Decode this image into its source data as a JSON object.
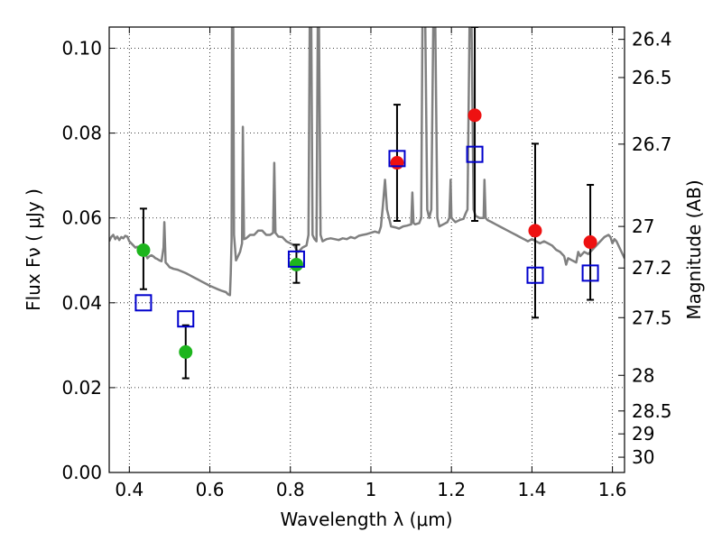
{
  "chart_data": {
    "type": "scatter",
    "xlabel": "Wavelength  λ (μm)",
    "ylabel": "Flux  Fν  ( μJy )",
    "y2label": "Magnitude (AB)",
    "xlim": [
      0.35,
      1.63
    ],
    "ylim": [
      0.0,
      0.105
    ],
    "grid": true,
    "x_ticks": [
      0.4,
      0.6,
      0.8,
      1.0,
      1.2,
      1.4,
      1.6
    ],
    "x_tick_labels": [
      "0.4",
      "0.6",
      "0.8",
      "1",
      "1.2",
      "1.4",
      "1.6"
    ],
    "y_ticks": [
      0.0,
      0.02,
      0.04,
      0.06,
      0.08,
      0.1
    ],
    "y_tick_labels": [
      "0.00",
      "0.02",
      "0.04",
      "0.06",
      "0.08",
      "0.10"
    ],
    "y2_ticks": [
      {
        "label": "26.4",
        "flux": 0.1021
      },
      {
        "label": "26.5",
        "flux": 0.0931
      },
      {
        "label": "26.7",
        "flux": 0.0774
      },
      {
        "label": "27",
        "flux": 0.058
      },
      {
        "label": "27.2",
        "flux": 0.0482
      },
      {
        "label": "27.5",
        "flux": 0.0365
      },
      {
        "label": "28",
        "flux": 0.0229
      },
      {
        "label": "28.5",
        "flux": 0.0145
      },
      {
        "label": "29",
        "flux": 0.0091
      },
      {
        "label": "30",
        "flux": 0.0036
      }
    ],
    "series": [
      {
        "marker": "circle",
        "color": "#1db51d",
        "points": [
          {
            "x": 0.435,
            "y": 0.0524,
            "ylo": 0.0432,
            "yhi": 0.0622
          },
          {
            "x": 0.54,
            "y": 0.0284,
            "ylo": 0.0222,
            "yhi": 0.0347
          },
          {
            "x": 0.815,
            "y": 0.049,
            "ylo": 0.0447,
            "yhi": 0.0537
          }
        ]
      },
      {
        "marker": "circle",
        "color": "#ee1111",
        "points": [
          {
            "x": 1.065,
            "y": 0.073,
            "ylo": 0.0593,
            "yhi": 0.0867
          },
          {
            "x": 1.258,
            "y": 0.0842,
            "ylo": 0.0593,
            "yhi": 0.105
          },
          {
            "x": 1.408,
            "y": 0.057,
            "ylo": 0.0365,
            "yhi": 0.0775
          },
          {
            "x": 1.545,
            "y": 0.0543,
            "ylo": 0.0407,
            "yhi": 0.0678
          }
        ]
      },
      {
        "marker": "open-square",
        "color": "#0000cc",
        "points": [
          {
            "x": 0.435,
            "y": 0.04
          },
          {
            "x": 0.54,
            "y": 0.0362
          },
          {
            "x": 0.815,
            "y": 0.0503
          },
          {
            "x": 1.065,
            "y": 0.074
          },
          {
            "x": 1.258,
            "y": 0.075
          },
          {
            "x": 1.408,
            "y": 0.0465
          },
          {
            "x": 1.545,
            "y": 0.047
          }
        ]
      }
    ],
    "model_spectrum": {
      "color": "#808080",
      "points": [
        [
          0.35,
          0.0545
        ],
        [
          0.355,
          0.0555
        ],
        [
          0.36,
          0.056
        ],
        [
          0.365,
          0.055
        ],
        [
          0.37,
          0.0556
        ],
        [
          0.375,
          0.0548
        ],
        [
          0.38,
          0.0555
        ],
        [
          0.385,
          0.0552
        ],
        [
          0.39,
          0.0558
        ],
        [
          0.395,
          0.0556
        ],
        [
          0.4,
          0.0545
        ],
        [
          0.405,
          0.054
        ],
        [
          0.41,
          0.0535
        ],
        [
          0.415,
          0.053
        ],
        [
          0.42,
          0.0532
        ],
        [
          0.425,
          0.0528
        ],
        [
          0.43,
          0.0526
        ],
        [
          0.435,
          0.052
        ],
        [
          0.44,
          0.0515
        ],
        [
          0.445,
          0.0505
        ],
        [
          0.45,
          0.051
        ],
        [
          0.455,
          0.0512
        ],
        [
          0.46,
          0.0509
        ],
        [
          0.465,
          0.0505
        ],
        [
          0.47,
          0.0503
        ],
        [
          0.475,
          0.05
        ],
        [
          0.48,
          0.0498
        ],
        [
          0.485,
          0.053
        ],
        [
          0.487,
          0.059
        ],
        [
          0.489,
          0.053
        ],
        [
          0.49,
          0.0495
        ],
        [
          0.495,
          0.049
        ],
        [
          0.5,
          0.0484
        ],
        [
          0.51,
          0.048
        ],
        [
          0.52,
          0.0478
        ],
        [
          0.53,
          0.0474
        ],
        [
          0.54,
          0.047
        ],
        [
          0.55,
          0.0465
        ],
        [
          0.56,
          0.046
        ],
        [
          0.57,
          0.0455
        ],
        [
          0.58,
          0.045
        ],
        [
          0.59,
          0.0445
        ],
        [
          0.6,
          0.044
        ],
        [
          0.61,
          0.0436
        ],
        [
          0.62,
          0.0432
        ],
        [
          0.63,
          0.0428
        ],
        [
          0.64,
          0.0425
        ],
        [
          0.645,
          0.042
        ],
        [
          0.65,
          0.0418
        ],
        [
          0.652,
          0.047
        ],
        [
          0.654,
          0.055
        ],
        [
          0.655,
          0.106
        ],
        [
          0.658,
          0.106
        ],
        [
          0.66,
          0.056
        ],
        [
          0.665,
          0.05
        ],
        [
          0.67,
          0.051
        ],
        [
          0.675,
          0.052
        ],
        [
          0.68,
          0.054
        ],
        [
          0.682,
          0.0815
        ],
        [
          0.685,
          0.055
        ],
        [
          0.69,
          0.0552
        ],
        [
          0.7,
          0.056
        ],
        [
          0.71,
          0.056
        ],
        [
          0.72,
          0.057
        ],
        [
          0.73,
          0.057
        ],
        [
          0.74,
          0.056
        ],
        [
          0.75,
          0.056
        ],
        [
          0.757,
          0.0565
        ],
        [
          0.76,
          0.073
        ],
        [
          0.763,
          0.0565
        ],
        [
          0.77,
          0.0556
        ],
        [
          0.78,
          0.0555
        ],
        [
          0.79,
          0.0545
        ],
        [
          0.8,
          0.054
        ],
        [
          0.81,
          0.0535
        ],
        [
          0.815,
          0.0525
        ],
        [
          0.82,
          0.052
        ],
        [
          0.83,
          0.053
        ],
        [
          0.84,
          0.0535
        ],
        [
          0.845,
          0.056
        ],
        [
          0.848,
          0.106
        ],
        [
          0.852,
          0.106
        ],
        [
          0.855,
          0.056
        ],
        [
          0.86,
          0.055
        ],
        [
          0.865,
          0.0545
        ],
        [
          0.868,
          0.106
        ],
        [
          0.871,
          0.106
        ],
        [
          0.875,
          0.056
        ],
        [
          0.88,
          0.0545
        ],
        [
          0.89,
          0.055
        ],
        [
          0.9,
          0.0552
        ],
        [
          0.91,
          0.055
        ],
        [
          0.92,
          0.0548
        ],
        [
          0.93,
          0.0552
        ],
        [
          0.94,
          0.055
        ],
        [
          0.95,
          0.0555
        ],
        [
          0.96,
          0.0552
        ],
        [
          0.97,
          0.0558
        ],
        [
          0.98,
          0.056
        ],
        [
          0.99,
          0.0562
        ],
        [
          1.0,
          0.0565
        ],
        [
          1.01,
          0.0568
        ],
        [
          1.02,
          0.0565
        ],
        [
          1.025,
          0.058
        ],
        [
          1.03,
          0.063
        ],
        [
          1.035,
          0.069
        ],
        [
          1.04,
          0.062
        ],
        [
          1.05,
          0.058
        ],
        [
          1.06,
          0.0578
        ],
        [
          1.07,
          0.0575
        ],
        [
          1.08,
          0.058
        ],
        [
          1.09,
          0.0582
        ],
        [
          1.1,
          0.0585
        ],
        [
          1.103,
          0.066
        ],
        [
          1.106,
          0.0588
        ],
        [
          1.11,
          0.0585
        ],
        [
          1.12,
          0.0588
        ],
        [
          1.125,
          0.06
        ],
        [
          1.128,
          0.106
        ],
        [
          1.135,
          0.106
        ],
        [
          1.14,
          0.062
        ],
        [
          1.145,
          0.06
        ],
        [
          1.15,
          0.062
        ],
        [
          1.155,
          0.106
        ],
        [
          1.16,
          0.106
        ],
        [
          1.165,
          0.06
        ],
        [
          1.17,
          0.058
        ],
        [
          1.18,
          0.0585
        ],
        [
          1.19,
          0.059
        ],
        [
          1.195,
          0.06
        ],
        [
          1.198,
          0.069
        ],
        [
          1.2,
          0.06
        ],
        [
          1.21,
          0.059
        ],
        [
          1.22,
          0.0595
        ],
        [
          1.23,
          0.0598
        ],
        [
          1.235,
          0.061
        ],
        [
          1.24,
          0.062
        ],
        [
          1.245,
          0.106
        ],
        [
          1.25,
          0.106
        ],
        [
          1.255,
          0.062
        ],
        [
          1.26,
          0.0605
        ],
        [
          1.27,
          0.06
        ],
        [
          1.28,
          0.06
        ],
        [
          1.282,
          0.069
        ],
        [
          1.285,
          0.06
        ],
        [
          1.29,
          0.0595
        ],
        [
          1.3,
          0.059
        ],
        [
          1.31,
          0.0585
        ],
        [
          1.32,
          0.058
        ],
        [
          1.33,
          0.0575
        ],
        [
          1.34,
          0.057
        ],
        [
          1.35,
          0.0565
        ],
        [
          1.36,
          0.056
        ],
        [
          1.37,
          0.0555
        ],
        [
          1.38,
          0.055
        ],
        [
          1.39,
          0.0545
        ],
        [
          1.4,
          0.055
        ],
        [
          1.41,
          0.0545
        ],
        [
          1.42,
          0.054
        ],
        [
          1.43,
          0.0545
        ],
        [
          1.44,
          0.054
        ],
        [
          1.45,
          0.0535
        ],
        [
          1.46,
          0.0525
        ],
        [
          1.47,
          0.052
        ],
        [
          1.48,
          0.051
        ],
        [
          1.485,
          0.049
        ],
        [
          1.49,
          0.0505
        ],
        [
          1.5,
          0.05
        ],
        [
          1.51,
          0.0495
        ],
        [
          1.515,
          0.052
        ],
        [
          1.52,
          0.051
        ],
        [
          1.53,
          0.052
        ],
        [
          1.54,
          0.0515
        ],
        [
          1.55,
          0.0525
        ],
        [
          1.56,
          0.0535
        ],
        [
          1.57,
          0.0545
        ],
        [
          1.58,
          0.0555
        ],
        [
          1.59,
          0.056
        ],
        [
          1.595,
          0.0555
        ],
        [
          1.6,
          0.054
        ],
        [
          1.605,
          0.055
        ],
        [
          1.61,
          0.0545
        ],
        [
          1.62,
          0.0525
        ],
        [
          1.63,
          0.0505
        ]
      ]
    }
  }
}
